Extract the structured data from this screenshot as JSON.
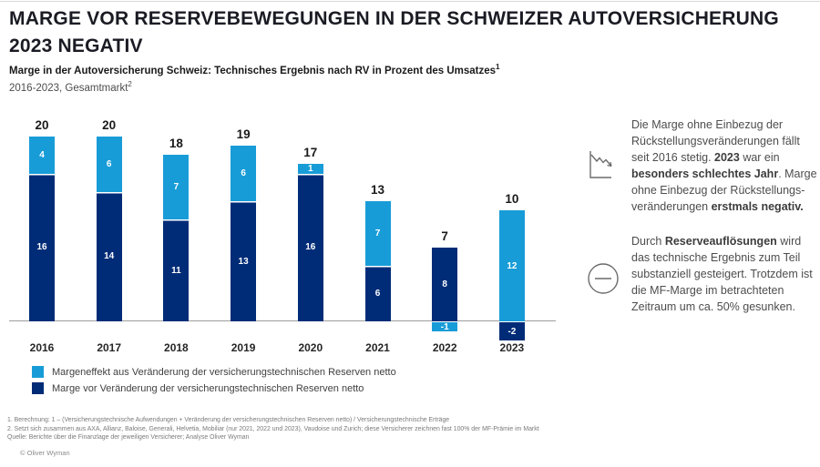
{
  "page": {
    "title": "MARGE VOR RESERVEBEWEGUNGEN IN DER SCHWEIZER AUTOVERSICHERUNG 2023 NEGATIV",
    "footer": "© Oliver Wyman"
  },
  "subtitle": {
    "line1": "Marge in der Autoversicherung Schweiz:  Technisches Ergebnis nach RV in Prozent des Umsatzes",
    "line1_sup": "1",
    "line2": "2016-2023, Gesamtmarkt",
    "line2_sup": "2"
  },
  "chart_data": {
    "type": "bar",
    "stacked": true,
    "categories": [
      "2016",
      "2017",
      "2018",
      "2019",
      "2020",
      "2021",
      "2022",
      "2023"
    ],
    "series": [
      {
        "name": "Marge vor Veränderung der versicherungstechnischen Reserven netto",
        "color": "#002C77",
        "values": [
          16,
          14,
          11,
          13,
          16,
          6,
          8,
          -2
        ]
      },
      {
        "name": "Margeneffekt aus Veränderung der versicherungstechnischen Reserven netto",
        "color": "#189CD8",
        "values": [
          4,
          6,
          7,
          6,
          1,
          7,
          -1,
          12
        ]
      }
    ],
    "totals": [
      20,
      20,
      18,
      19,
      17,
      13,
      7,
      10
    ],
    "ylabel": "Technisches Ergebnis nach RV in Prozent des Umsatzes",
    "ylim": [
      -3,
      21
    ],
    "grid": false,
    "legend_position": "bottom-left",
    "axis_color": "#9d9d9d"
  },
  "legend": [
    {
      "label": "Margeneffekt aus Veränderung der versicherungstechnischen Reserven netto",
      "color": "#189CD8"
    },
    {
      "label": "Marge vor Veränderung der versicherungstechnischen Reserven netto",
      "color": "#002C77"
    }
  ],
  "insights": [
    {
      "icon": "trend-down-icon",
      "segments": [
        {
          "text": "Die Marge ohne Einbezug der Rückstellungsveränderungen fällt seit 2016 stetig. ",
          "bold": false
        },
        {
          "text": "2023",
          "bold": true
        },
        {
          "text": " war ein ",
          "bold": false
        },
        {
          "text": "besonders schlechtes Jahr",
          "bold": true
        },
        {
          "text": ". Marge ohne Einbezug der Rückstellungs-veränderungen ",
          "bold": false
        },
        {
          "text": "erstmals negativ.",
          "bold": true
        }
      ]
    },
    {
      "icon": "minus-circle-icon",
      "segments": [
        {
          "text": "Durch ",
          "bold": false
        },
        {
          "text": "Reserveauflösungen",
          "bold": true
        },
        {
          "text": " wird das technische Ergebnis zum Teil substanziell gesteigert. Trotzdem ist die MF-Marge im betrachteten Zeitraum um ca. 50% gesunken.",
          "bold": false
        }
      ]
    }
  ],
  "footnotes": [
    "1. Berechnung: 1 – (Versicherungstechnische Aufwendungen + Veränderung der versicherungstechnischen Reserven netto) / Versicherungstechnische Erträge",
    "2. Setzt sich zusammen aus AXA, Allianz, Baloise, Generali, Helvetia, Mobiliar (nur 2021, 2022 und 2023), Vaudoise und Zurich; diese Versicherer zeichnen fast 100% der MF-Prämie im Markt",
    "Quelle: Berichte über die Finanzlage der jeweiligen Versicherer; Analyse Oliver Wyman"
  ]
}
